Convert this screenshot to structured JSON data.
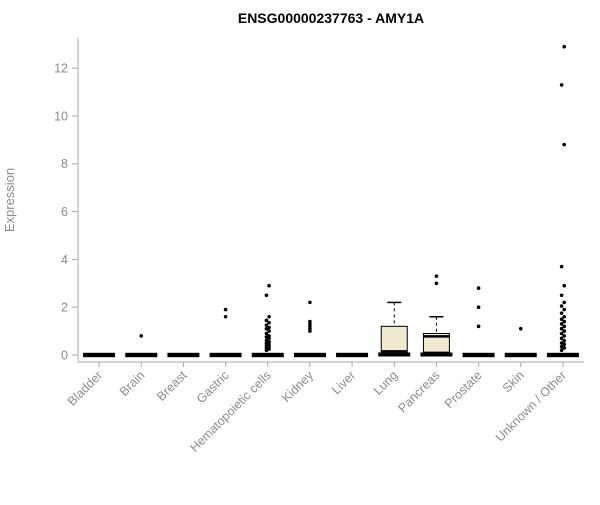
{
  "chart_data": {
    "type": "boxplot",
    "title": "ENSG00000237763 - AMY1A",
    "ylabel": "Expression",
    "ylim": [
      0,
      13.2
    ],
    "yticks": [
      0,
      2,
      4,
      6,
      8,
      10,
      12
    ],
    "grid": false,
    "legend": "none",
    "box_fill": "#f0e9d0",
    "box_stroke": "#000000",
    "axis_color": "#a8a8a8",
    "label_color": "#8c8c8c",
    "categories": [
      "Bladder",
      "Brain",
      "Breast",
      "Gastric",
      "Hematopoietic cells",
      "Kidney",
      "Liver",
      "Lung",
      "Pancreas",
      "Prostate",
      "Skin",
      "Unknown / Other"
    ],
    "series": [
      {
        "name": "Bladder",
        "whislo": 0,
        "q1": 0,
        "med": 0,
        "q3": 0,
        "whishi": 0,
        "outliers": []
      },
      {
        "name": "Brain",
        "whislo": 0,
        "q1": 0,
        "med": 0,
        "q3": 0,
        "whishi": 0,
        "outliers": [
          0.8
        ]
      },
      {
        "name": "Breast",
        "whislo": 0,
        "q1": 0,
        "med": 0,
        "q3": 0,
        "whishi": 0,
        "outliers": []
      },
      {
        "name": "Gastric",
        "whislo": 0,
        "q1": 0,
        "med": 0,
        "q3": 0,
        "whishi": 0,
        "outliers": [
          1.6,
          1.9
        ]
      },
      {
        "name": "Hematopoietic cells",
        "whislo": 0,
        "q1": 0,
        "med": 0,
        "q3": 0,
        "whishi": 0,
        "outliers": [
          0.2,
          0.25,
          0.3,
          0.35,
          0.4,
          0.45,
          0.5,
          0.55,
          0.6,
          0.7,
          0.75,
          0.8,
          0.9,
          1.0,
          1.1,
          1.15,
          1.25,
          1.35,
          1.45,
          1.6,
          2.5,
          2.9
        ]
      },
      {
        "name": "Kidney",
        "whislo": 0,
        "q1": 0,
        "med": 0,
        "q3": 0,
        "whishi": 0,
        "outliers": [
          1.0,
          1.1,
          1.2,
          1.3,
          1.4,
          2.2
        ]
      },
      {
        "name": "Liver",
        "whislo": 0,
        "q1": 0,
        "med": 0,
        "q3": 0,
        "whishi": 0,
        "outliers": []
      },
      {
        "name": "Lung",
        "whislo": 0,
        "q1": 0.08,
        "med": 0.15,
        "q3": 1.2,
        "whishi": 2.2,
        "outliers": []
      },
      {
        "name": "Pancreas",
        "whislo": 0,
        "q1": 0.12,
        "med": 0.78,
        "q3": 0.9,
        "whishi": 1.6,
        "outliers": [
          3.0,
          3.3
        ]
      },
      {
        "name": "Prostate",
        "whislo": 0,
        "q1": 0,
        "med": 0,
        "q3": 0,
        "whishi": 0,
        "outliers": [
          1.2,
          2.0,
          2.8
        ]
      },
      {
        "name": "Skin",
        "whislo": 0,
        "med": 0,
        "q1": 0,
        "q3": 0,
        "whishi": 0,
        "outliers": [
          1.1
        ]
      },
      {
        "name": "Unknown / Other",
        "whislo": 0,
        "q1": 0,
        "med": 0,
        "q3": 0,
        "whishi": 0,
        "outliers": [
          0.2,
          0.3,
          0.35,
          0.45,
          0.5,
          0.6,
          0.7,
          0.8,
          0.9,
          1.0,
          1.1,
          1.2,
          1.3,
          1.4,
          1.5,
          1.6,
          1.75,
          1.9,
          2.05,
          2.2,
          2.5,
          2.9,
          3.7,
          8.8,
          11.3,
          12.9
        ]
      }
    ]
  }
}
